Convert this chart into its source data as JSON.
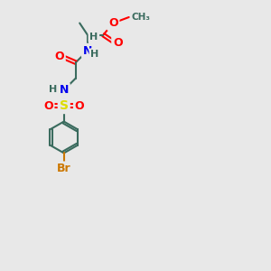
{
  "bg_color": "#e8e8e8",
  "bond_color": "#3a6b5e",
  "bond_width": 1.5,
  "atom_colors": {
    "O": "#ff0000",
    "N": "#0000ee",
    "S": "#dddd00",
    "Br": "#cc7700",
    "C": "#3a6b5e",
    "H": "#3a6b5e"
  },
  "font_size_atom": 9,
  "font_size_H": 8,
  "font_size_CH3": 7.5
}
